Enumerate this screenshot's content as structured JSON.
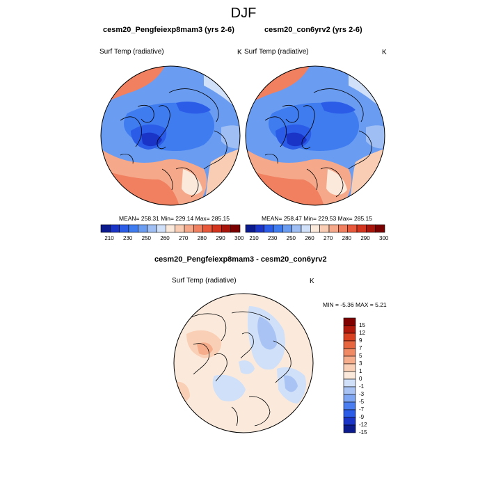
{
  "page": {
    "title": "DJF"
  },
  "palette": {
    "abs": [
      "#0b1a8c",
      "#1a34c8",
      "#2a5ce8",
      "#3f7cf0",
      "#6a9cf2",
      "#9fbff4",
      "#cfe0f8",
      "#fbe9dc",
      "#f9cdb4",
      "#f5a98a",
      "#f08060",
      "#e8583a",
      "#d2341e",
      "#a8140a",
      "#7a0000"
    ],
    "diff": [
      "#0b1a8c",
      "#1a34c8",
      "#2a5ce8",
      "#4a7ef0",
      "#7fa6f2",
      "#a9c4f4",
      "#cfe0f8",
      "#fbeadc",
      "#f9cfb5",
      "#f5ad8c",
      "#f08a64",
      "#e8663f",
      "#d94020",
      "#b0180c",
      "#800000"
    ]
  },
  "panels": [
    {
      "title": "cesm20_Pengfeiexp8mam3 (yrs 2-6)",
      "variable": "Surf Temp (radiative)",
      "units": "K",
      "stats": "MEAN= 258.31  Min= 229.14  Max= 285.15",
      "colorbar_labels": [
        "210",
        "230",
        "250",
        "260",
        "270",
        "280",
        "290",
        "300"
      ]
    },
    {
      "title": "cesm20_con6yrv2 (yrs 2-6)",
      "variable": "Surf Temp (radiative)",
      "units": "K",
      "stats": "MEAN= 258.47  Min= 229.53  Max= 285.15",
      "colorbar_labels": [
        "210",
        "230",
        "250",
        "260",
        "270",
        "280",
        "290",
        "300"
      ]
    }
  ],
  "diff_panel": {
    "title": "cesm20_Pengfeiexp8mam3 - cesm20_con6yrv2",
    "variable": "Surf Temp (radiative)",
    "units": "K",
    "stats": "MIN =  -5.36 MAX =   5.21",
    "colorbar_labels": [
      "15",
      "12",
      "9",
      "7",
      "5",
      "3",
      "1",
      "0",
      "-1",
      "-3",
      "-5",
      "-7",
      "-9",
      "-12",
      "-15"
    ]
  }
}
